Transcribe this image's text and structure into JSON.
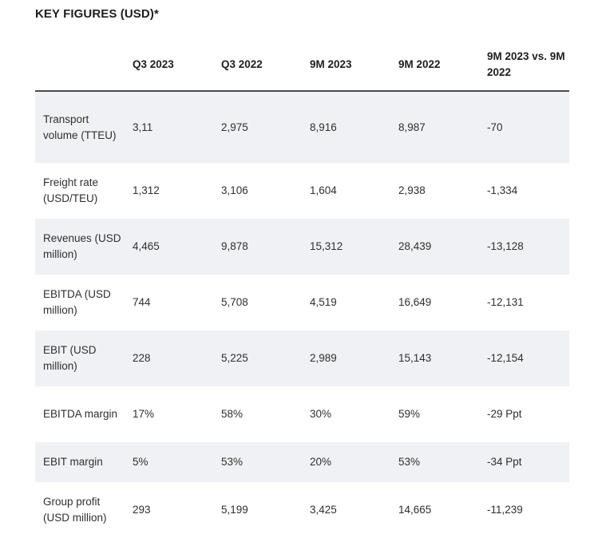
{
  "title": "KEY FIGURES (USD)*",
  "table": {
    "headers": [
      "",
      "Q3 2023",
      "Q3 2022",
      "9M 2023",
      "9M 2022",
      "9M 2023 vs. 9M 2022"
    ],
    "rows": [
      {
        "label": "Transport volume (TTEU)",
        "values": [
          "3,11",
          "2,975",
          "8,916",
          "8,987",
          "-70"
        ]
      },
      {
        "label": "Freight rate (USD/TEU)",
        "values": [
          "1,312",
          "3,106",
          "1,604",
          "2,938",
          "-1,334"
        ]
      },
      {
        "label": "Revenues (USD million)",
        "values": [
          "4,465",
          "9,878",
          "15,312",
          "28,439",
          "-13,128"
        ]
      },
      {
        "label": "EBITDA (USD million)",
        "values": [
          "744",
          "5,708",
          "4,519",
          "16,649",
          "-12,131"
        ]
      },
      {
        "label": "EBIT (USD million)",
        "values": [
          "228",
          "5,225",
          "2,989",
          "15,143",
          "-12,154"
        ]
      },
      {
        "label": "EBITDA margin",
        "values": [
          "17%",
          "58%",
          "30%",
          "59%",
          "-29 Ppt"
        ]
      },
      {
        "label": "EBIT margin",
        "values": [
          "5%",
          "53%",
          "20%",
          "53%",
          "-34 Ppt"
        ]
      },
      {
        "label": "Group profit (USD million)",
        "values": [
          "293",
          "5,199",
          "3,425",
          "14,665",
          "-11,239"
        ]
      }
    ]
  }
}
